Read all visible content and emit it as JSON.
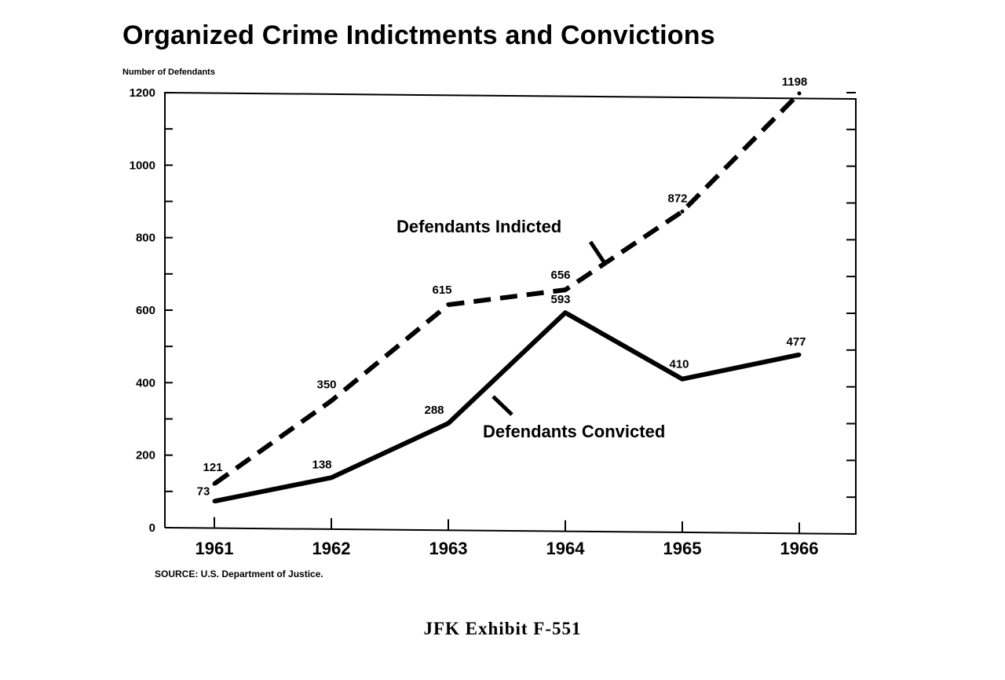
{
  "page": {
    "exhibit_label": "JFK Exhibit F-551"
  },
  "chart_data": {
    "type": "line",
    "title": "Organized Crime Indictments and Convictions",
    "xlabel": "",
    "ylabel": "Number of Defendants",
    "source": "SOURCE: U.S. Department of Justice.",
    "categories": [
      "1961",
      "1962",
      "1963",
      "1964",
      "1965",
      "1966"
    ],
    "ylim": [
      0,
      1200
    ],
    "yticks": [
      0,
      200,
      400,
      600,
      800,
      1000,
      1200
    ],
    "grid": false,
    "series": [
      {
        "name": "Defendants Indicted",
        "style": "dashed",
        "values": [
          121,
          350,
          615,
          656,
          872,
          1198
        ]
      },
      {
        "name": "Defendants Convicted",
        "style": "solid",
        "values": [
          73,
          138,
          288,
          593,
          410,
          477
        ]
      }
    ],
    "colors": {
      "ink": "#000000",
      "background": "#ffffff"
    }
  }
}
